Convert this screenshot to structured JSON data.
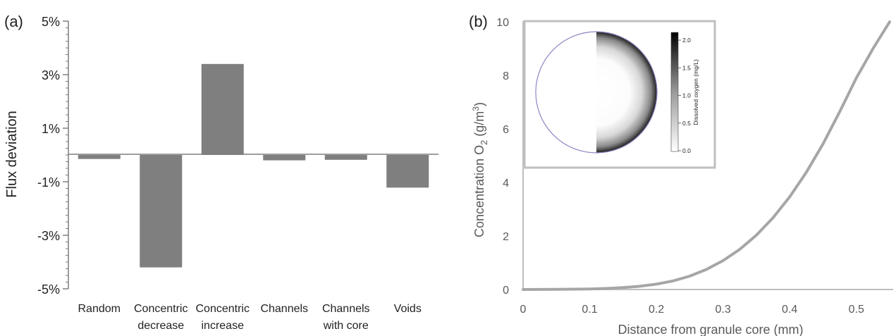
{
  "chart_data": [
    {
      "panel_label": "(a)",
      "type": "bar",
      "ylabel": "Flux deviation",
      "xlabel": "",
      "categories": [
        [
          "Random"
        ],
        [
          "Concentric",
          "decrease"
        ],
        [
          "Concentric",
          "increase"
        ],
        [
          "Channels"
        ],
        [
          "Channels",
          "with core"
        ],
        [
          "Voids"
        ]
      ],
      "values": [
        -0.0015,
        -0.042,
        0.034,
        -0.002,
        -0.0018,
        -0.0122
      ],
      "ylim": [
        -0.05,
        0.05
      ],
      "yticks": [
        {
          "value": 0.05,
          "label": "5%"
        },
        {
          "value": 0.03,
          "label": "3%"
        },
        {
          "value": 0.01,
          "label": "1%"
        },
        {
          "value": -0.01,
          "label": "-1%"
        },
        {
          "value": -0.03,
          "label": "-3%"
        },
        {
          "value": -0.05,
          "label": "-5%"
        }
      ],
      "colors": {
        "bar": "#7f7f7f",
        "axis": "#7f7f7f",
        "text": "#222222"
      }
    },
    {
      "panel_label": "(b)",
      "type": "line",
      "xlabel": "Distance from granule core (mm)",
      "ylabel": {
        "main": "Concentration O",
        "sub": "2",
        "unit_pre": " (g/m",
        "sup": "3",
        "unit_post": ")"
      },
      "xlim": [
        0,
        0.55
      ],
      "ylim": [
        0,
        10
      ],
      "xticks": [
        {
          "value": 0,
          "label": "0"
        },
        {
          "value": 0.1,
          "label": "0.1"
        },
        {
          "value": 0.2,
          "label": "0.2"
        },
        {
          "value": 0.3,
          "label": "0.3"
        },
        {
          "value": 0.4,
          "label": "0.4"
        },
        {
          "value": 0.5,
          "label": "0.5"
        }
      ],
      "yticks": [
        {
          "value": 0,
          "label": "0"
        },
        {
          "value": 2,
          "label": "2"
        },
        {
          "value": 4,
          "label": "4"
        },
        {
          "value": 6,
          "label": "6"
        },
        {
          "value": 8,
          "label": "8"
        },
        {
          "value": 10,
          "label": "10"
        }
      ],
      "series": [
        {
          "x": [
            0,
            0.05,
            0.1,
            0.125,
            0.15,
            0.175,
            0.2,
            0.225,
            0.25,
            0.275,
            0.3,
            0.325,
            0.35,
            0.375,
            0.4,
            0.425,
            0.45,
            0.475,
            0.5,
            0.525,
            0.55
          ],
          "y": [
            0,
            0.005,
            0.02,
            0.04,
            0.07,
            0.12,
            0.2,
            0.32,
            0.5,
            0.75,
            1.08,
            1.5,
            2.03,
            2.68,
            3.46,
            4.38,
            5.44,
            6.64,
            7.9,
            9.0,
            10.0
          ]
        }
      ],
      "colors": {
        "line": "#a6a6a6",
        "axis": "#bfbfbf",
        "text": "#595959"
      },
      "inset": {
        "colorbar_label": "Dissolved oxygen (mg/L)",
        "colorbar_ticks": [
          "0.0",
          "0.5",
          "1.0",
          "1.5",
          "2.0"
        ],
        "circle_outline": "#8e86c4"
      }
    }
  ]
}
